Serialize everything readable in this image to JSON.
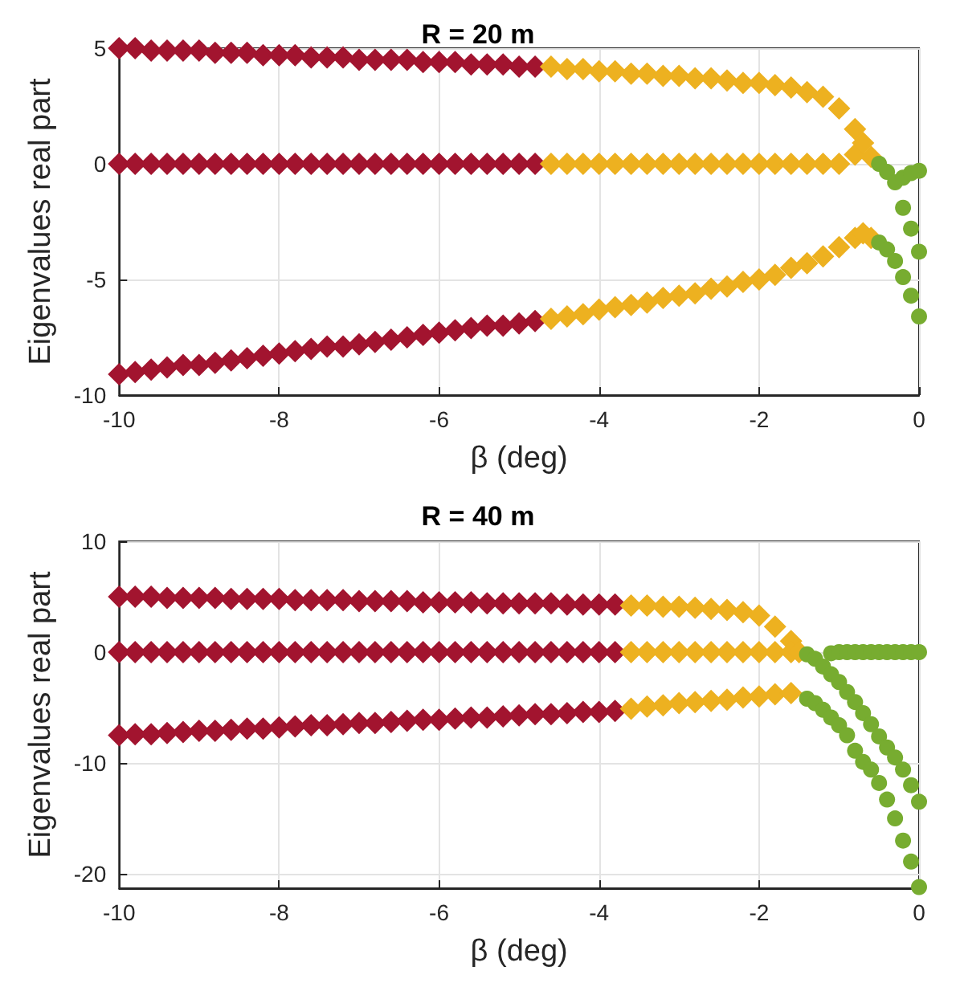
{
  "chart_data": [
    {
      "type": "scatter",
      "title": "R = 20 m",
      "xlabel": "β (deg)",
      "ylabel": "Eigenvalues real part",
      "xlim": [
        -10,
        0
      ],
      "ylim": [
        -10,
        5
      ],
      "xticks": [
        -10,
        -8,
        -6,
        -4,
        -2,
        0
      ],
      "yticks": [
        -10,
        -5,
        0,
        5
      ],
      "grid": true,
      "series": [
        {
          "color": "#a2142f",
          "marker": "diamond",
          "x": [
            -10,
            -9.8,
            -9.6,
            -9.4,
            -9.2,
            -9,
            -8.8,
            -8.6,
            -8.4,
            -8.2,
            -8,
            -7.8,
            -7.6,
            -7.4,
            -7.2,
            -7,
            -6.8,
            -6.6,
            -6.4,
            -6.2,
            -6,
            -5.8,
            -5.6,
            -5.4,
            -5.2,
            -5,
            -4.8,
            -10,
            -9.8,
            -9.6,
            -9.4,
            -9.2,
            -9,
            -8.8,
            -8.6,
            -8.4,
            -8.2,
            -8,
            -7.8,
            -7.6,
            -7.4,
            -7.2,
            -7,
            -6.8,
            -6.6,
            -6.4,
            -6.2,
            -6,
            -5.8,
            -5.6,
            -5.4,
            -5.2,
            -5,
            -4.8,
            -10,
            -9.8,
            -9.6,
            -9.4,
            -9.2,
            -9,
            -8.8,
            -8.6,
            -8.4,
            -8.2,
            -8,
            -7.8,
            -7.6,
            -7.4,
            -7.2,
            -7,
            -6.8,
            -6.6,
            -6.4,
            -6.2,
            -6,
            -5.8,
            -5.6,
            -5.4,
            -5.2,
            -5,
            -4.8
          ],
          "values": [
            5,
            5,
            4.9,
            4.9,
            4.9,
            4.9,
            4.8,
            4.8,
            4.8,
            4.7,
            4.7,
            4.7,
            4.6,
            4.6,
            4.6,
            4.5,
            4.5,
            4.5,
            4.5,
            4.4,
            4.4,
            4.4,
            4.3,
            4.3,
            4.3,
            4.2,
            4.2,
            0,
            0,
            0,
            0,
            0,
            0,
            0,
            0,
            0,
            0,
            0,
            0,
            0,
            0,
            0,
            0,
            0,
            0,
            0,
            0,
            0,
            0,
            0,
            0,
            0,
            0,
            0,
            -9.1,
            -9.0,
            -8.9,
            -8.8,
            -8.7,
            -8.7,
            -8.6,
            -8.5,
            -8.4,
            -8.3,
            -8.2,
            -8.1,
            -8.0,
            -7.9,
            -7.9,
            -7.8,
            -7.7,
            -7.6,
            -7.5,
            -7.4,
            -7.3,
            -7.2,
            -7.1,
            -7.0,
            -7.0,
            -6.9,
            -6.8
          ]
        },
        {
          "color": "#edb120",
          "marker": "diamond",
          "x": [
            -4.6,
            -4.4,
            -4.2,
            -4,
            -3.8,
            -3.6,
            -3.4,
            -3.2,
            -3,
            -2.8,
            -2.6,
            -2.4,
            -2.2,
            -2,
            -1.8,
            -1.6,
            -1.4,
            -1.2,
            -1,
            -0.8,
            -4.6,
            -4.4,
            -4.2,
            -4,
            -3.8,
            -3.6,
            -3.4,
            -3.2,
            -3,
            -2.8,
            -2.6,
            -2.4,
            -2.2,
            -2,
            -1.8,
            -1.6,
            -1.4,
            -1.2,
            -1,
            -0.8,
            -0.7,
            -0.6,
            -4.6,
            -4.4,
            -4.2,
            -4,
            -3.8,
            -3.6,
            -3.4,
            -3.2,
            -3,
            -2.8,
            -2.6,
            -2.4,
            -2.2,
            -2,
            -1.8,
            -1.6,
            -1.4,
            -1.2,
            -1,
            -0.8,
            -0.7,
            -0.6
          ],
          "values": [
            4.2,
            4.1,
            4.1,
            4.0,
            4.0,
            3.9,
            3.9,
            3.8,
            3.8,
            3.7,
            3.7,
            3.6,
            3.5,
            3.5,
            3.4,
            3.3,
            3.1,
            2.9,
            2.4,
            1.5,
            0,
            0,
            0,
            0,
            0,
            0,
            0,
            0,
            0,
            0,
            0,
            0,
            0,
            0,
            0,
            0,
            0,
            0,
            0,
            0.4,
            0.9,
            0.3,
            -6.7,
            -6.6,
            -6.5,
            -6.3,
            -6.2,
            -6.1,
            -6.0,
            -5.8,
            -5.7,
            -5.6,
            -5.4,
            -5.3,
            -5.1,
            -5.0,
            -4.8,
            -4.5,
            -4.3,
            -4.0,
            -3.6,
            -3.2,
            -3.0,
            -3.2
          ]
        },
        {
          "color": "#77ac30",
          "marker": "circle",
          "x": [
            -0.5,
            -0.4,
            -0.3,
            -0.2,
            -0.1,
            0,
            -0.2,
            -0.1,
            0,
            -0.5,
            -0.4,
            -0.3,
            -0.2,
            -0.1,
            0
          ],
          "values": [
            0,
            -0.35,
            -0.8,
            -0.6,
            -0.4,
            -0.3,
            -1.9,
            -2.8,
            -3.8,
            -3.4,
            -3.7,
            -4.2,
            -4.9,
            -5.7,
            -6.6
          ]
        }
      ]
    },
    {
      "type": "scatter",
      "title": "R = 40 m",
      "xlabel": "β (deg)",
      "ylabel": "Eigenvalues real part",
      "xlim": [
        -10,
        0
      ],
      "ylim": [
        -21.3,
        10
      ],
      "xticks": [
        -10,
        -8,
        -6,
        -4,
        -2,
        0
      ],
      "yticks": [
        -20,
        -10,
        0,
        10
      ],
      "grid": true,
      "series": [
        {
          "color": "#a2142f",
          "marker": "diamond",
          "x": [
            -10,
            -9.8,
            -9.6,
            -9.4,
            -9.2,
            -9,
            -8.8,
            -8.6,
            -8.4,
            -8.2,
            -8,
            -7.8,
            -7.6,
            -7.4,
            -7.2,
            -7,
            -6.8,
            -6.6,
            -6.4,
            -6.2,
            -6,
            -5.8,
            -5.6,
            -5.4,
            -5.2,
            -5,
            -4.8,
            -4.6,
            -4.4,
            -4.2,
            -4,
            -3.8,
            -10,
            -9.8,
            -9.6,
            -9.4,
            -9.2,
            -9,
            -8.8,
            -8.6,
            -8.4,
            -8.2,
            -8,
            -7.8,
            -7.6,
            -7.4,
            -7.2,
            -7,
            -6.8,
            -6.6,
            -6.4,
            -6.2,
            -6,
            -5.8,
            -5.6,
            -5.4,
            -5.2,
            -5,
            -4.8,
            -4.6,
            -4.4,
            -4.2,
            -4,
            -3.8,
            -10,
            -9.8,
            -9.6,
            -9.4,
            -9.2,
            -9,
            -8.8,
            -8.6,
            -8.4,
            -8.2,
            -8,
            -7.8,
            -7.6,
            -7.4,
            -7.2,
            -7,
            -6.8,
            -6.6,
            -6.4,
            -6.2,
            -6,
            -5.8,
            -5.6,
            -5.4,
            -5.2,
            -5,
            -4.8,
            -4.6,
            -4.4,
            -4.2,
            -4,
            -3.8
          ],
          "values": [
            5.0,
            5.0,
            5.0,
            4.9,
            4.9,
            4.9,
            4.9,
            4.8,
            4.8,
            4.8,
            4.8,
            4.7,
            4.7,
            4.7,
            4.7,
            4.6,
            4.6,
            4.6,
            4.6,
            4.5,
            4.5,
            4.5,
            4.5,
            4.4,
            4.4,
            4.4,
            4.4,
            4.4,
            4.3,
            4.3,
            4.3,
            4.3,
            0,
            0,
            0,
            0,
            0,
            0,
            0,
            0,
            0,
            0,
            0,
            0,
            0,
            0,
            0,
            0,
            0,
            0,
            0,
            0,
            0,
            0,
            0,
            0,
            0,
            0,
            0,
            0,
            0,
            0,
            0,
            0,
            -7.5,
            -7.4,
            -7.4,
            -7.3,
            -7.2,
            -7.1,
            -7.1,
            -7.0,
            -6.9,
            -6.9,
            -6.8,
            -6.7,
            -6.6,
            -6.6,
            -6.5,
            -6.4,
            -6.4,
            -6.3,
            -6.2,
            -6.1,
            -6.1,
            -6.0,
            -5.9,
            -5.9,
            -5.8,
            -5.7,
            -5.6,
            -5.6,
            -5.5,
            -5.4,
            -5.4,
            -5.3
          ]
        },
        {
          "color": "#edb120",
          "marker": "diamond",
          "x": [
            -3.6,
            -3.4,
            -3.2,
            -3,
            -2.8,
            -2.6,
            -2.4,
            -2.2,
            -2,
            -1.8,
            -1.6,
            -3.6,
            -3.4,
            -3.2,
            -3,
            -2.8,
            -2.6,
            -2.4,
            -2.2,
            -2,
            -1.8,
            -1.6,
            -1.5,
            -3.6,
            -3.4,
            -3.2,
            -3,
            -2.8,
            -2.6,
            -2.4,
            -2.2,
            -2,
            -1.8,
            -1.6
          ],
          "values": [
            4.2,
            4.2,
            4.1,
            4.1,
            4.0,
            3.9,
            3.8,
            3.6,
            3.3,
            2.3,
            1.0,
            0,
            0,
            0,
            0,
            0,
            0,
            0,
            0,
            0,
            0,
            0,
            0,
            -5.1,
            -4.9,
            -4.8,
            -4.6,
            -4.5,
            -4.4,
            -4.3,
            -4.1,
            -4.0,
            -3.8,
            -3.7
          ]
        },
        {
          "color": "#77ac30",
          "marker": "circle",
          "x": [
            -1.4,
            -1.1,
            -1,
            -0.9,
            -0.8,
            -0.7,
            -0.6,
            -0.5,
            -0.4,
            -0.3,
            -0.2,
            -0.1,
            0,
            -1.3,
            -1.2,
            -1.1,
            -1,
            -0.9,
            -0.8,
            -0.7,
            -0.6,
            -0.5,
            -0.4,
            -0.3,
            -0.2,
            -0.1,
            0,
            -1.4,
            -1.3,
            -1.2,
            -1.1,
            -1,
            -0.9,
            -0.8,
            -0.7,
            -0.6,
            -0.5,
            -0.4,
            -0.3,
            -0.2,
            -0.1,
            0
          ],
          "values": [
            -0.2,
            -0.1,
            0,
            0,
            0,
            0,
            0,
            0,
            0,
            0,
            0,
            0,
            0,
            -0.6,
            -1.3,
            -2.0,
            -2.7,
            -3.6,
            -4.5,
            -5.5,
            -6.5,
            -7.6,
            -8.6,
            -9.5,
            -10.6,
            -12.0,
            -13.5,
            -4.2,
            -4.6,
            -5.2,
            -5.9,
            -6.6,
            -7.5,
            -8.9,
            -9.9,
            -10.6,
            -11.8,
            -13.3,
            -15.0,
            -17.0,
            -18.9,
            -21.2
          ]
        }
      ]
    }
  ]
}
